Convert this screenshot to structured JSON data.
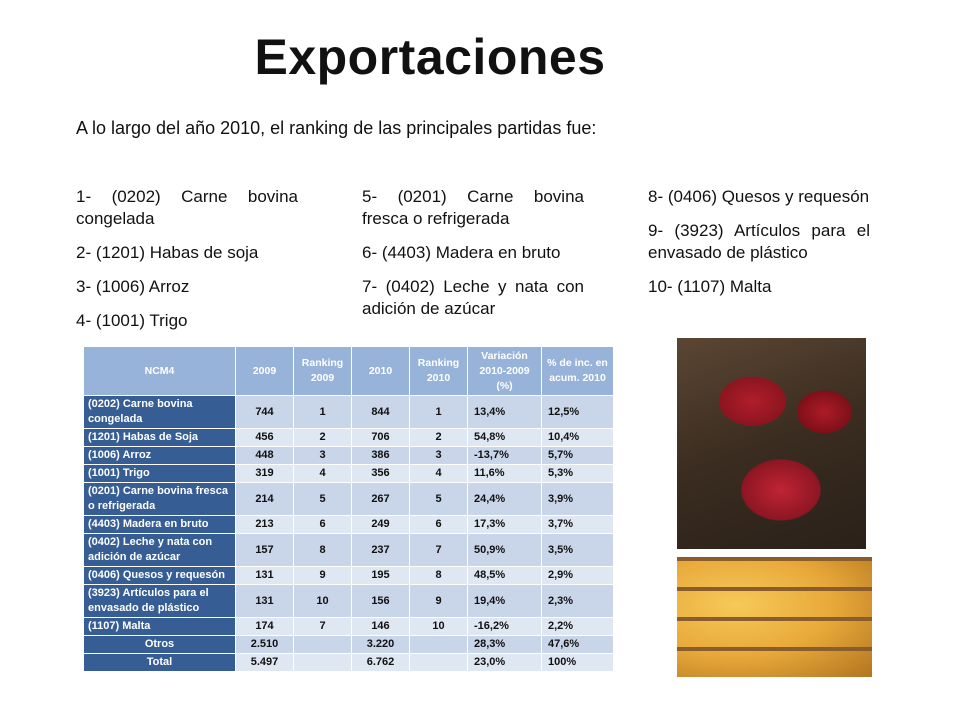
{
  "title": "Exportaciones",
  "intro": "A lo largo del año 2010, el ranking de las principales partidas fue:",
  "ranking_columns": [
    [
      "1- (0202) Carne bovina congelada",
      "2- (1201) Habas de soja",
      "3- (1006) Arroz",
      "4- (1001) Trigo"
    ],
    [
      "5- (0201) Carne bovina fresca o refrigerada",
      "6- (4403) Madera en bruto",
      "7- (0402) Leche y nata con adición de azúcar"
    ],
    [
      "8- (0406) Quesos y requesón",
      "9- (3923) Artículos para el envasado de plástico",
      "10- (1107) Malta"
    ]
  ],
  "table": {
    "headers": [
      "NCM4",
      "2009",
      "Ranking 2009",
      "2010",
      "Ranking 2010",
      "Variación 2010-2009 (%)",
      "% de inc. en acum. 2010"
    ],
    "rows": [
      [
        "(0202) Carne bovina congelada",
        "744",
        "1",
        "844",
        "1",
        "13,4%",
        "12,5%"
      ],
      [
        "(1201) Habas de Soja",
        "456",
        "2",
        "706",
        "2",
        "54,8%",
        "10,4%"
      ],
      [
        "(1006) Arroz",
        "448",
        "3",
        "386",
        "3",
        "-13,7%",
        "5,7%"
      ],
      [
        "(1001) Trigo",
        "319",
        "4",
        "356",
        "4",
        "11,6%",
        "5,3%"
      ],
      [
        "(0201) Carne bovina fresca o refrigerada",
        "214",
        "5",
        "267",
        "5",
        "24,4%",
        "3,9%"
      ],
      [
        "(4403) Madera en bruto",
        "213",
        "6",
        "249",
        "6",
        "17,3%",
        "3,7%"
      ],
      [
        "(0402) Leche y nata con adición de azúcar",
        "157",
        "8",
        "237",
        "7",
        "50,9%",
        "3,5%"
      ],
      [
        "(0406) Quesos y requesón",
        "131",
        "9",
        "195",
        "8",
        "48,5%",
        "2,9%"
      ],
      [
        "(3923) Artículos para el envasado de plástico",
        "131",
        "10",
        "156",
        "9",
        "19,4%",
        "2,3%"
      ],
      [
        "(1107) Malta",
        "174",
        "7",
        "146",
        "10",
        "-16,2%",
        "2,2%"
      ]
    ],
    "summary": [
      [
        "Otros",
        "2.510",
        "",
        "3.220",
        "",
        "28,3%",
        "47,6%"
      ],
      [
        "Total",
        "5.497",
        "",
        "6.762",
        "",
        "23,0%",
        "100%"
      ]
    ]
  },
  "images": [
    "meat-steaks-photo",
    "cheese-wheels-photo"
  ],
  "colors": {
    "header_bg": "#98b3d9",
    "name_bg": "#365d94",
    "row_light": "#dfe7f3",
    "row_mid": "#c9d6ea"
  }
}
